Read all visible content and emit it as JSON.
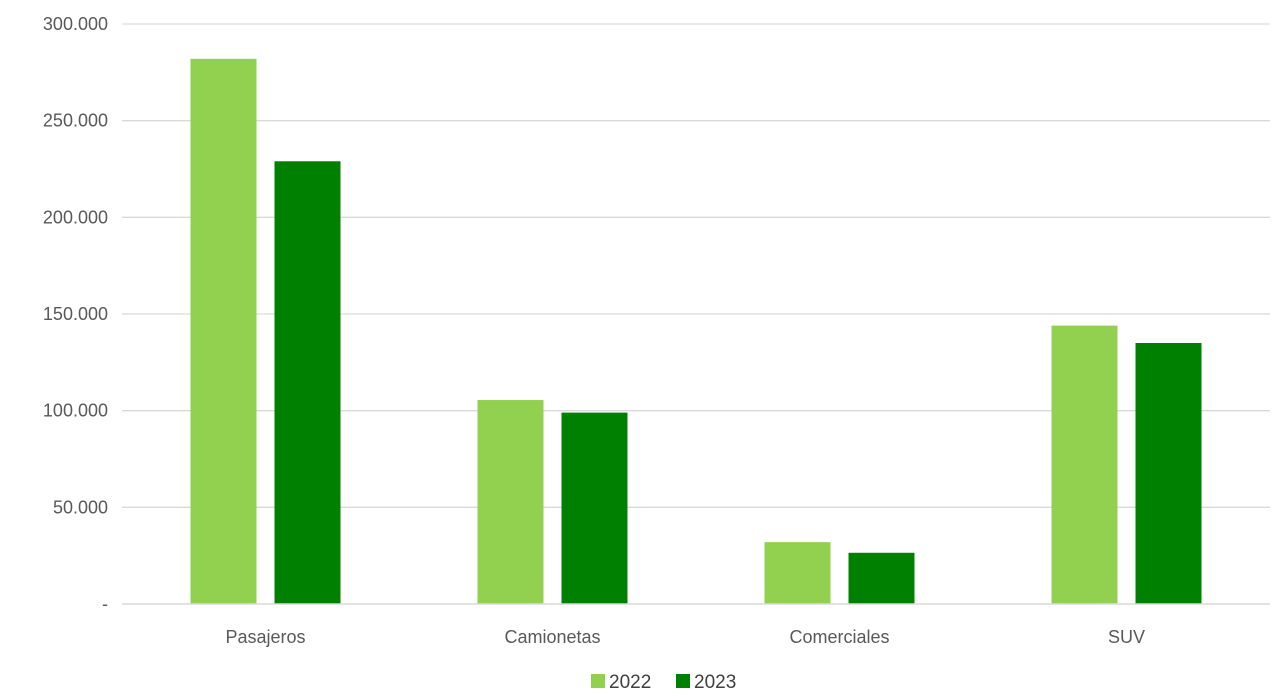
{
  "chart_data": {
    "type": "bar",
    "title": "",
    "xlabel": "",
    "ylabel": "",
    "categories": [
      "Pasajeros",
      "Camionetas",
      "Comerciales",
      "SUV"
    ],
    "series": [
      {
        "name": "2022",
        "color": "#92D050",
        "values": [
          282000,
          105500,
          32000,
          144000
        ]
      },
      {
        "name": "2023",
        "color": "#008000",
        "values": [
          229000,
          99000,
          26500,
          135000
        ]
      }
    ],
    "ylim": [
      0,
      300000
    ],
    "yticks": [
      0,
      50000,
      100000,
      150000,
      200000,
      250000,
      300000
    ],
    "ytick_labels": [
      "-",
      "50.000",
      "100.000",
      "150.000",
      "200.000",
      "250.000",
      "300.000"
    ],
    "grid": true,
    "legend": "bottom-center"
  }
}
